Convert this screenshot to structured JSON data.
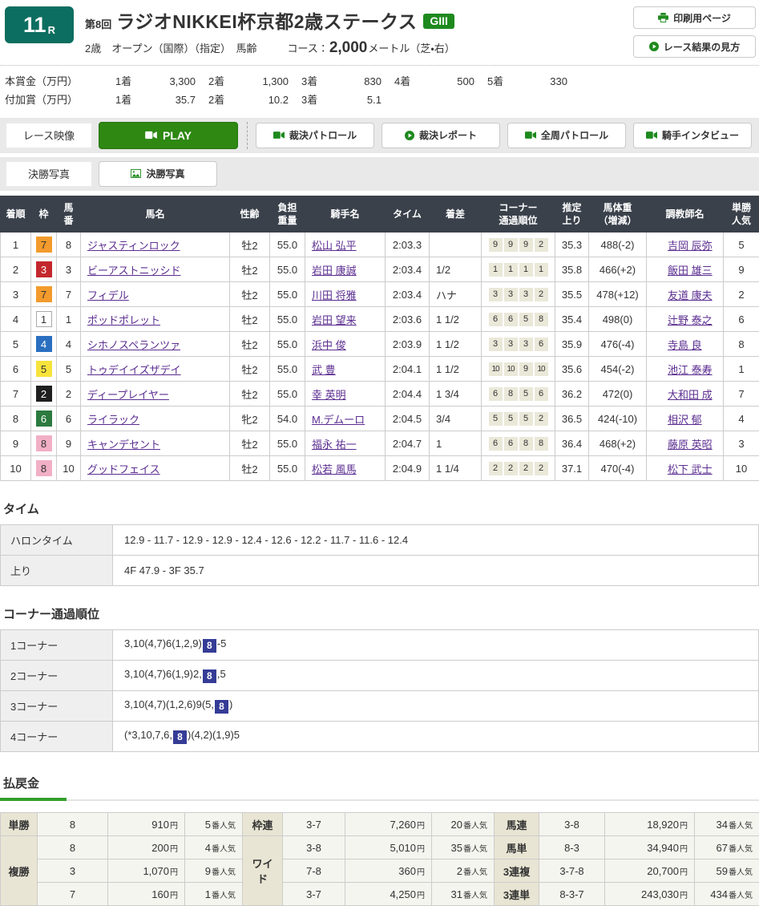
{
  "header": {
    "race_number": "11",
    "race_number_suffix": "R",
    "round": "第8回",
    "title": "ラジオNIKKEI杯京都2歳ステークス",
    "grade": "GIII",
    "conditions": "2歳　オープン（国際）（指定）　馬齢",
    "course_label": "コース：",
    "course_distance": "2,000",
    "course_detail": "メートル（芝・右）",
    "print_button": "印刷用ページ",
    "guide_button": "レース結果の見方"
  },
  "prizes": {
    "main_label": "本賞金（万円）",
    "extra_label": "付加賞（万円）",
    "main": [
      {
        "place": "1着",
        "amount": "3,300"
      },
      {
        "place": "2着",
        "amount": "1,300"
      },
      {
        "place": "3着",
        "amount": "830"
      },
      {
        "place": "4着",
        "amount": "500"
      },
      {
        "place": "5着",
        "amount": "330"
      }
    ],
    "extra": [
      {
        "place": "1着",
        "amount": "35.7"
      },
      {
        "place": "2着",
        "amount": "10.2"
      },
      {
        "place": "3着",
        "amount": "5.1"
      }
    ]
  },
  "media": {
    "video_label": "レース映像",
    "play_button": "PLAY",
    "patrol_buttons": [
      {
        "label": "裁決パトロール",
        "icon": "video-camera"
      },
      {
        "label": "裁決レポート",
        "icon": "play-circle"
      },
      {
        "label": "全周パトロール",
        "icon": "video-camera"
      },
      {
        "label": "騎手インタビュー",
        "icon": "video-camera"
      }
    ],
    "photo_label": "決勝写真",
    "photo_button": "決勝写真"
  },
  "results": {
    "headers": [
      "着順",
      "枠",
      "馬\n番",
      "馬名",
      "性齢",
      "負担\n重量",
      "騎手名",
      "タイム",
      "着差",
      "コーナー\n通過順位",
      "推定\n上り",
      "馬体重\n（増減）",
      "調教師名",
      "単勝\n人気"
    ],
    "rows": [
      {
        "place": "1",
        "waku": "7",
        "umaban": "8",
        "horse": "ジャスティンロック",
        "sexage": "牡2",
        "weight": "55.0",
        "jockey": "松山 弘平",
        "time": "2:03.3",
        "margin": "",
        "corners": [
          "9",
          "9",
          "9",
          "2"
        ],
        "last3f": "35.3",
        "body_weight": "488(-2)",
        "trainer": "吉岡 辰弥",
        "ninki": "5"
      },
      {
        "place": "2",
        "waku": "3",
        "umaban": "3",
        "horse": "ビーアストニッシド",
        "sexage": "牡2",
        "weight": "55.0",
        "jockey": "岩田 康誠",
        "time": "2:03.4",
        "margin": "1/2",
        "corners": [
          "1",
          "1",
          "1",
          "1"
        ],
        "last3f": "35.8",
        "body_weight": "466(+2)",
        "trainer": "飯田 雄三",
        "ninki": "9"
      },
      {
        "place": "3",
        "waku": "7",
        "umaban": "7",
        "horse": "フィデル",
        "sexage": "牡2",
        "weight": "55.0",
        "jockey": "川田 将雅",
        "time": "2:03.4",
        "margin": "ハナ",
        "corners": [
          "3",
          "3",
          "3",
          "2"
        ],
        "last3f": "35.5",
        "body_weight": "478(+12)",
        "trainer": "友道 康夫",
        "ninki": "2"
      },
      {
        "place": "4",
        "waku": "1",
        "umaban": "1",
        "horse": "ポッドポレット",
        "sexage": "牡2",
        "weight": "55.0",
        "jockey": "岩田 望来",
        "time": "2:03.6",
        "margin": "1 1/2",
        "corners": [
          "6",
          "6",
          "5",
          "8"
        ],
        "last3f": "35.4",
        "body_weight": "498(0)",
        "trainer": "辻野 泰之",
        "ninki": "6"
      },
      {
        "place": "5",
        "waku": "4",
        "umaban": "4",
        "horse": "シホノスペランツァ",
        "sexage": "牡2",
        "weight": "55.0",
        "jockey": "浜中 俊",
        "time": "2:03.9",
        "margin": "1 1/2",
        "corners": [
          "3",
          "3",
          "3",
          "6"
        ],
        "last3f": "35.9",
        "body_weight": "476(-4)",
        "trainer": "寺島 良",
        "ninki": "8"
      },
      {
        "place": "6",
        "waku": "5",
        "umaban": "5",
        "horse": "トゥデイイズザデイ",
        "sexage": "牡2",
        "weight": "55.0",
        "jockey": "武 豊",
        "time": "2:04.1",
        "margin": "1 1/2",
        "corners": [
          "10",
          "10",
          "9",
          "10"
        ],
        "last3f": "35.6",
        "body_weight": "454(-2)",
        "trainer": "池江 泰寿",
        "ninki": "1"
      },
      {
        "place": "7",
        "waku": "2",
        "umaban": "2",
        "horse": "ディープレイヤー",
        "sexage": "牡2",
        "weight": "55.0",
        "jockey": "幸 英明",
        "time": "2:04.4",
        "margin": "1 3/4",
        "corners": [
          "6",
          "8",
          "5",
          "6"
        ],
        "last3f": "36.2",
        "body_weight": "472(0)",
        "trainer": "大和田 成",
        "ninki": "7"
      },
      {
        "place": "8",
        "waku": "6",
        "umaban": "6",
        "horse": "ライラック",
        "sexage": "牝2",
        "weight": "54.0",
        "jockey": "M.デムーロ",
        "time": "2:04.5",
        "margin": "3/4",
        "corners": [
          "5",
          "5",
          "5",
          "2"
        ],
        "last3f": "36.5",
        "body_weight": "424(-10)",
        "trainer": "相沢 郁",
        "ninki": "4"
      },
      {
        "place": "9",
        "waku": "8",
        "umaban": "9",
        "horse": "キャンデセント",
        "sexage": "牡2",
        "weight": "55.0",
        "jockey": "福永 祐一",
        "time": "2:04.7",
        "margin": "1",
        "corners": [
          "6",
          "6",
          "8",
          "8"
        ],
        "last3f": "36.4",
        "body_weight": "468(+2)",
        "trainer": "藤原 英昭",
        "ninki": "3"
      },
      {
        "place": "10",
        "waku": "8",
        "umaban": "10",
        "horse": "グッドフェイス",
        "sexage": "牡2",
        "weight": "55.0",
        "jockey": "松若 風馬",
        "time": "2:04.9",
        "margin": "1 1/4",
        "corners": [
          "2",
          "2",
          "2",
          "2"
        ],
        "last3f": "37.1",
        "body_weight": "470(-4)",
        "trainer": "松下 武士",
        "ninki": "10"
      }
    ]
  },
  "time_section": {
    "heading": "タイム",
    "rows": [
      {
        "label": "ハロンタイム",
        "value": "12.9 - 11.7 - 12.9 - 12.9 - 12.4 - 12.6 - 12.2 - 11.7 - 11.6 - 12.4"
      },
      {
        "label": "上り",
        "value": "4F 47.9 - 3F 35.7"
      }
    ]
  },
  "corner_section": {
    "heading": "コーナー通過順位",
    "rows": [
      {
        "label": "1コーナー",
        "pre": "3,10(4,7)6(1,2,9)",
        "highlight": "8",
        "post": "-5"
      },
      {
        "label": "2コーナー",
        "pre": "3,10(4,7)6(1,9)2,",
        "highlight": "8",
        "post": ",5"
      },
      {
        "label": "3コーナー",
        "pre": "3,10(4,7)(1,2,6)9(5,",
        "highlight": "8",
        "post": ")"
      },
      {
        "label": "4コーナー",
        "pre": "(*3,10,7,6,",
        "highlight": "8",
        "post": ")(4,2)(1,9)5"
      }
    ]
  },
  "payouts": {
    "heading": "払戻金",
    "yen_suffix": "円",
    "ninki_suffix": "番人気",
    "tansho": {
      "label": "単勝",
      "num": "8",
      "pay": "910",
      "ninki": "5"
    },
    "fukusho": {
      "label": "複勝",
      "rows": [
        {
          "num": "8",
          "pay": "200",
          "ninki": "4"
        },
        {
          "num": "3",
          "pay": "1,070",
          "ninki": "9"
        },
        {
          "num": "7",
          "pay": "160",
          "ninki": "1"
        }
      ]
    },
    "wakuren": {
      "label": "枠連",
      "num": "3-7",
      "pay": "7,260",
      "ninki": "20"
    },
    "wide": {
      "label": "ワイド",
      "rows": [
        {
          "num": "3-8",
          "pay": "5,010",
          "ninki": "35"
        },
        {
          "num": "7-8",
          "pay": "360",
          "ninki": "2"
        },
        {
          "num": "3-7",
          "pay": "4,250",
          "ninki": "31"
        }
      ]
    },
    "umaren": {
      "label": "馬連",
      "num": "3-8",
      "pay": "18,920",
      "ninki": "34"
    },
    "umatan": {
      "label": "馬単",
      "num": "8-3",
      "pay": "34,940",
      "ninki": "67"
    },
    "sanrenpuku": {
      "label": "3連複",
      "num": "3-7-8",
      "pay": "20,700",
      "ninki": "59"
    },
    "sanrentan": {
      "label": "3連単",
      "num": "8-3-7",
      "pay": "243,030",
      "ninki": "434"
    }
  },
  "colors": {
    "race_badge_teal": "#0c6e60",
    "grade_badge_green": "#1e8a1e",
    "play_button_green": "#2e8812",
    "table_header_bg": "#3a414b",
    "link_purple": "#5b2d90",
    "corner_chip_bg": "#eae8d8",
    "highlight_navy": "#353c96",
    "payout_label_bg": "#e9e5d4",
    "payout_heading_green": "#33a02c",
    "waku": {
      "1": {
        "bg": "#ffffff",
        "fg": "#333333",
        "border": "#aaaaaa"
      },
      "2": {
        "bg": "#1f1f1f",
        "fg": "#ffffff",
        "border": "#1f1f1f"
      },
      "3": {
        "bg": "#c3272d",
        "fg": "#ffffff",
        "border": "#c3272d"
      },
      "4": {
        "bg": "#2a6fc0",
        "fg": "#ffffff",
        "border": "#2a6fc0"
      },
      "5": {
        "bg": "#f7e33c",
        "fg": "#333333",
        "border": "#f7e33c"
      },
      "6": {
        "bg": "#2c7a3f",
        "fg": "#ffffff",
        "border": "#2c7a3f"
      },
      "7": {
        "bg": "#f39b2c",
        "fg": "#333333",
        "border": "#f39b2c"
      },
      "8": {
        "bg": "#f2afc6",
        "fg": "#333333",
        "border": "#f2afc6"
      }
    }
  }
}
